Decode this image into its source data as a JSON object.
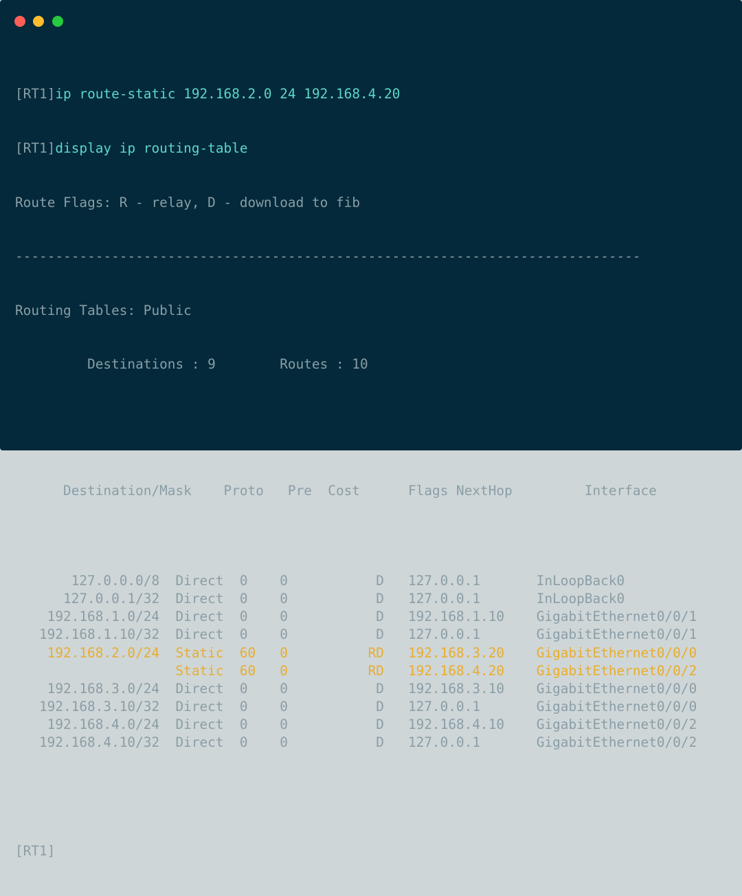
{
  "window": {
    "controls": [
      {
        "name": "close",
        "color": "#ff5f56"
      },
      {
        "name": "minimize",
        "color": "#ffbd2e"
      },
      {
        "name": "maximize",
        "color": "#27c93f"
      }
    ]
  },
  "colors": {
    "background": "#03293a",
    "text": "#8a9ea6",
    "command": "#5ed7c6",
    "highlight": "#e8ad2e"
  },
  "terminal": {
    "prompt": "[RT1]",
    "commands": [
      "ip route-static 192.168.2.0 24 192.168.4.20",
      "display ip routing-table"
    ],
    "flags_legend": "Route Flags: R - relay, D - download to fib",
    "separator": "------------------------------------------------------------------------------",
    "tables_title": "Routing Tables: Public",
    "destinations": "Destinations : 9",
    "routes": "Routes : 10",
    "headers": {
      "destination": "Destination/Mask",
      "proto": "Proto",
      "pre": "Pre",
      "cost": "Cost",
      "flags": "Flags",
      "nexthop": "NextHop",
      "interface": "Interface"
    },
    "rows": [
      {
        "destination": "127.0.0.0/8",
        "proto": "Direct",
        "pre": "0",
        "cost": "0",
        "flags": "D",
        "nexthop": "127.0.0.1",
        "interface": "InLoopBack0",
        "highlight": false
      },
      {
        "destination": "127.0.0.1/32",
        "proto": "Direct",
        "pre": "0",
        "cost": "0",
        "flags": "D",
        "nexthop": "127.0.0.1",
        "interface": "InLoopBack0",
        "highlight": false
      },
      {
        "destination": "192.168.1.0/24",
        "proto": "Direct",
        "pre": "0",
        "cost": "0",
        "flags": "D",
        "nexthop": "192.168.1.10",
        "interface": "GigabitEthernet0/0/1",
        "highlight": false
      },
      {
        "destination": "192.168.1.10/32",
        "proto": "Direct",
        "pre": "0",
        "cost": "0",
        "flags": "D",
        "nexthop": "127.0.0.1",
        "interface": "GigabitEthernet0/0/1",
        "highlight": false
      },
      {
        "destination": "192.168.2.0/24",
        "proto": "Static",
        "pre": "60",
        "cost": "0",
        "flags": "RD",
        "nexthop": "192.168.3.20",
        "interface": "GigabitEthernet0/0/0",
        "highlight": true
      },
      {
        "destination": "",
        "proto": "Static",
        "pre": "60",
        "cost": "0",
        "flags": "RD",
        "nexthop": "192.168.4.20",
        "interface": "GigabitEthernet0/0/2",
        "highlight": true
      },
      {
        "destination": "192.168.3.0/24",
        "proto": "Direct",
        "pre": "0",
        "cost": "0",
        "flags": "D",
        "nexthop": "192.168.3.10",
        "interface": "GigabitEthernet0/0/0",
        "highlight": false
      },
      {
        "destination": "192.168.3.10/32",
        "proto": "Direct",
        "pre": "0",
        "cost": "0",
        "flags": "D",
        "nexthop": "127.0.0.1",
        "interface": "GigabitEthernet0/0/0",
        "highlight": false
      },
      {
        "destination": "192.168.4.0/24",
        "proto": "Direct",
        "pre": "0",
        "cost": "0",
        "flags": "D",
        "nexthop": "192.168.4.10",
        "interface": "GigabitEthernet0/0/2",
        "highlight": false
      },
      {
        "destination": "192.168.4.10/32",
        "proto": "Direct",
        "pre": "0",
        "cost": "0",
        "flags": "D",
        "nexthop": "127.0.0.1",
        "interface": "GigabitEthernet0/0/2",
        "highlight": false
      }
    ]
  }
}
